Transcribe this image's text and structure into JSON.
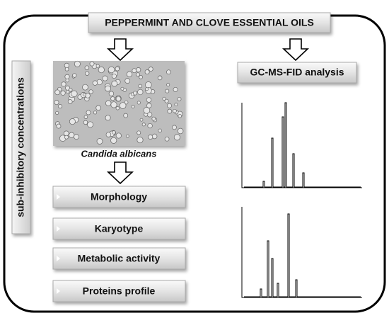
{
  "title": "PEPPERMINT AND CLOVE ESSENTIAL OILS",
  "side_label": "sub-inhibitory concentrations",
  "image_caption": "Candida albicans",
  "analysis_box": "GC-MS-FID analysis",
  "assays": [
    "Morphology",
    "Karyotype",
    "Metabolic activity",
    "Proteins profile"
  ]
}
